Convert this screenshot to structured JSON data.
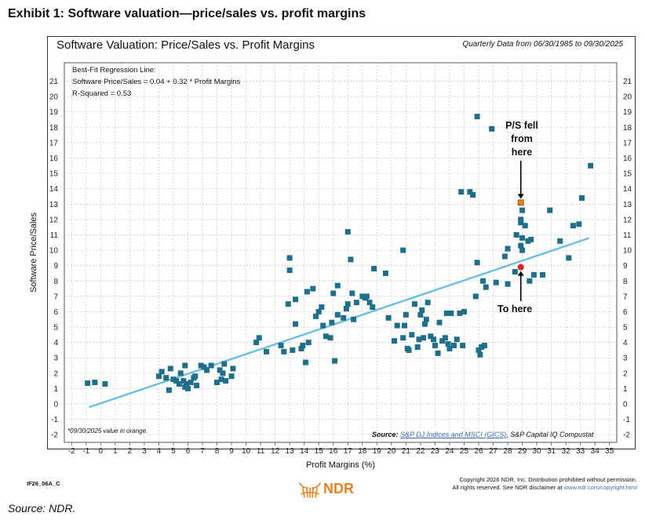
{
  "exhibit_title": "Exhibit 1: Software valuation—price/sales vs. profit margins",
  "chart_data": {
    "type": "scatter",
    "title": "Software Valuation: Price/Sales vs. Profit Margins",
    "subtitle": "Quarterly Data from 06/30/1985 to 09/30/2025",
    "xlabel": "Profit Margins (%)",
    "ylabel": "Software Price/Sales",
    "xlim": [
      -2.5,
      35.5
    ],
    "ylim": [
      -2.5,
      22.2
    ],
    "x_ticks": [
      -2,
      -1,
      0,
      1,
      2,
      3,
      4,
      5,
      6,
      7,
      8,
      9,
      10,
      11,
      12,
      13,
      14,
      15,
      16,
      17,
      18,
      19,
      20,
      21,
      22,
      23,
      24,
      25,
      26,
      27,
      28,
      29,
      30,
      31,
      32,
      33,
      34,
      35
    ],
    "y_ticks": [
      -2,
      -1,
      0,
      1,
      2,
      3,
      4,
      5,
      6,
      7,
      8,
      9,
      10,
      11,
      12,
      13,
      14,
      15,
      16,
      17,
      18,
      19,
      20,
      21
    ],
    "grid": "both",
    "regression": {
      "intercept": 0.04,
      "slope": 0.32,
      "x_range": [
        -0.8,
        33.6
      ],
      "color": "#6ec1e4",
      "text_lines": [
        "Best-Fit Regression Line:",
        "Software Price/Sales = 0.04 + 0.32 * Profit Margins",
        "R-Squared = 0.53"
      ]
    },
    "series": [
      {
        "color": "#1f6f8b",
        "points": [
          [
            -0.9,
            1.35
          ],
          [
            -0.4,
            1.4
          ],
          [
            0.3,
            1.3
          ],
          [
            4.0,
            1.8
          ],
          [
            4.2,
            2.1
          ],
          [
            4.5,
            1.7
          ],
          [
            4.7,
            0.9
          ],
          [
            4.8,
            2.3
          ],
          [
            5.0,
            1.6
          ],
          [
            5.2,
            1.5
          ],
          [
            5.4,
            1.3
          ],
          [
            5.5,
            2.0
          ],
          [
            5.7,
            1.5
          ],
          [
            5.8,
            1.1
          ],
          [
            5.9,
            1.3
          ],
          [
            6.0,
            1.0
          ],
          [
            6.2,
            1.4
          ],
          [
            6.4,
            1.7
          ],
          [
            6.5,
            1.8
          ],
          [
            6.6,
            1.2
          ],
          [
            5.8,
            2.5
          ],
          [
            6.9,
            2.5
          ],
          [
            7.1,
            2.4
          ],
          [
            7.3,
            2.2
          ],
          [
            7.6,
            2.5
          ],
          [
            8.0,
            1.4
          ],
          [
            8.2,
            2.2
          ],
          [
            8.3,
            1.6
          ],
          [
            8.4,
            2.0
          ],
          [
            8.5,
            2.6
          ],
          [
            8.6,
            1.5
          ],
          [
            9.0,
            1.8
          ],
          [
            9.1,
            2.3
          ],
          [
            10.7,
            4.0
          ],
          [
            10.9,
            4.3
          ],
          [
            11.4,
            3.4
          ],
          [
            12.4,
            3.8
          ],
          [
            12.6,
            3.4
          ],
          [
            12.9,
            6.5
          ],
          [
            13.0,
            9.5
          ],
          [
            13.0,
            8.7
          ],
          [
            13.2,
            3.5
          ],
          [
            13.4,
            5.2
          ],
          [
            13.4,
            6.8
          ],
          [
            13.8,
            3.6
          ],
          [
            13.9,
            3.8
          ],
          [
            14.1,
            2.7
          ],
          [
            14.2,
            7.3
          ],
          [
            14.3,
            4.0
          ],
          [
            14.6,
            7.5
          ],
          [
            14.8,
            5.7
          ],
          [
            15.0,
            6.0
          ],
          [
            15.2,
            6.3
          ],
          [
            15.3,
            5.1
          ],
          [
            15.5,
            4.4
          ],
          [
            15.8,
            4.3
          ],
          [
            15.9,
            5.3
          ],
          [
            16.0,
            7.2
          ],
          [
            16.1,
            2.8
          ],
          [
            16.3,
            5.8
          ],
          [
            16.3,
            7.7
          ],
          [
            16.7,
            5.6
          ],
          [
            16.9,
            6.2
          ],
          [
            17.0,
            6.5
          ],
          [
            17.0,
            11.2
          ],
          [
            17.2,
            9.4
          ],
          [
            17.3,
            7.2
          ],
          [
            17.4,
            5.5
          ],
          [
            17.6,
            6.6
          ],
          [
            18.0,
            7.0
          ],
          [
            18.2,
            6.9
          ],
          [
            18.3,
            7.0
          ],
          [
            18.5,
            6.6
          ],
          [
            18.7,
            6.3
          ],
          [
            18.8,
            8.8
          ],
          [
            19.6,
            8.5
          ],
          [
            19.8,
            5.6
          ],
          [
            20.2,
            4.1
          ],
          [
            20.4,
            5.1
          ],
          [
            20.8,
            4.3
          ],
          [
            20.8,
            10.0
          ],
          [
            20.9,
            5.1
          ],
          [
            21.0,
            5.8
          ],
          [
            21.1,
            3.6
          ],
          [
            21.2,
            3.5
          ],
          [
            21.4,
            4.5
          ],
          [
            21.6,
            6.5
          ],
          [
            21.8,
            3.7
          ],
          [
            21.9,
            4.2
          ],
          [
            22.0,
            5.8
          ],
          [
            22.1,
            6.1
          ],
          [
            22.2,
            4.3
          ],
          [
            22.3,
            5.2
          ],
          [
            22.4,
            5.5
          ],
          [
            22.5,
            6.6
          ],
          [
            22.7,
            4.4
          ],
          [
            22.9,
            4.2
          ],
          [
            23.0,
            3.8
          ],
          [
            23.2,
            3.3
          ],
          [
            23.3,
            5.3
          ],
          [
            23.5,
            4.1
          ],
          [
            23.7,
            4.3
          ],
          [
            23.8,
            5.9
          ],
          [
            23.9,
            3.9
          ],
          [
            24.0,
            3.6
          ],
          [
            24.1,
            5.9
          ],
          [
            24.3,
            3.8
          ],
          [
            24.5,
            4.2
          ],
          [
            24.7,
            5.9
          ],
          [
            24.8,
            13.8
          ],
          [
            24.9,
            3.8
          ],
          [
            25.0,
            6.0
          ],
          [
            25.4,
            13.8
          ],
          [
            25.6,
            13.6
          ],
          [
            25.8,
            7.0
          ],
          [
            25.9,
            9.2
          ],
          [
            25.9,
            18.7
          ],
          [
            26.0,
            3.5
          ],
          [
            26.1,
            3.2
          ],
          [
            26.2,
            3.7
          ],
          [
            26.3,
            8.0
          ],
          [
            26.4,
            3.8
          ],
          [
            26.5,
            7.6
          ],
          [
            26.9,
            17.9
          ],
          [
            27.2,
            7.9
          ],
          [
            27.8,
            9.6
          ],
          [
            28.0,
            10.1
          ],
          [
            28.0,
            7.8
          ],
          [
            28.5,
            8.6
          ],
          [
            28.6,
            11.0
          ],
          [
            28.9,
            10.3
          ],
          [
            28.9,
            11.8
          ],
          [
            28.9,
            12.0
          ],
          [
            29.0,
            12.6
          ],
          [
            29.0,
            10.8
          ],
          [
            29.0,
            10.0
          ],
          [
            29.2,
            11.6
          ],
          [
            29.4,
            10.6
          ],
          [
            29.5,
            8.0
          ],
          [
            29.6,
            10.7
          ],
          [
            29.8,
            8.4
          ],
          [
            30.4,
            8.4
          ],
          [
            30.9,
            12.6
          ],
          [
            31.6,
            10.6
          ],
          [
            32.2,
            9.5
          ],
          [
            32.5,
            11.6
          ],
          [
            32.9,
            11.7
          ],
          [
            33.1,
            13.4
          ],
          [
            33.7,
            15.5
          ]
        ]
      },
      {
        "name": "*09/30/2025 value in orange.",
        "color": "#e8801e",
        "points": [
          [
            28.9,
            13.1
          ]
        ]
      },
      {
        "color": "#d42a2a",
        "marker": "circle",
        "points": [
          [
            28.9,
            8.9
          ]
        ]
      }
    ],
    "annotations": {
      "fell_lines": [
        "P/S fell",
        "from",
        "here"
      ],
      "to_here": "To here"
    }
  },
  "note": "*09/30/2025 value in orange.",
  "source": {
    "label": "Source:",
    "link_text": "S&P DJ Indices and MSCI (GICS)",
    "rest": ", S&P Capital IQ Compustat"
  },
  "footer": {
    "code": "IF26_06A_C",
    "logo_text": "NDR",
    "copyright_line1": "Copyright 2026 NDR, Inc. Distribution prohibited without permission.",
    "copyright_line2": "All rights reserved. See NDR disclaimer at ",
    "copyright_url": "www.ndr.com/copyright.html",
    "source_caption": "Source: NDR."
  }
}
